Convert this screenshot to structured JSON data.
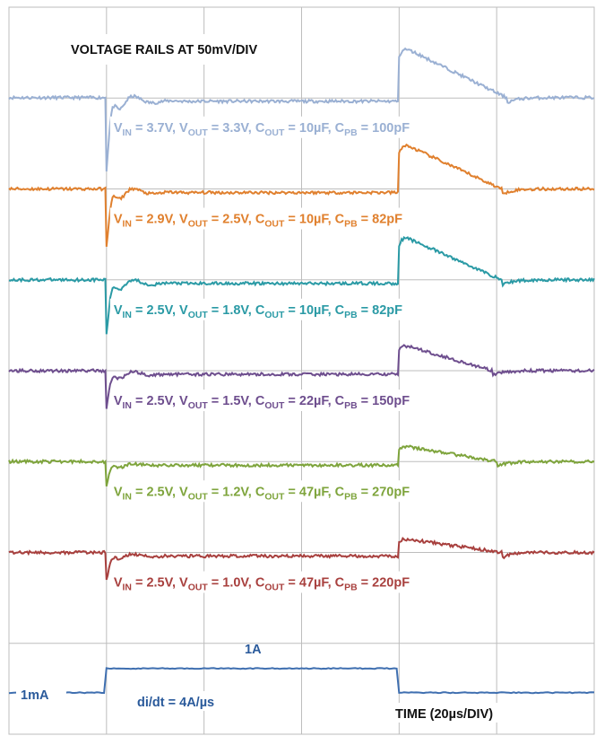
{
  "chart_data": {
    "type": "line",
    "title": "VOLTAGE RAILS AT 50mV/DIV",
    "time_label": "TIME (20µs/DIV)",
    "grid": true,
    "divisions": {
      "x": 6,
      "y": 8
    },
    "xlim": [
      0,
      120
    ],
    "x_unit": "µs",
    "load_step": {
      "t_on": 20,
      "t_off": 80,
      "low_label": "1mA",
      "high_label": "1A",
      "slew_label": "di/dt = 4A/µs",
      "color": "#3f6fb0"
    },
    "series": [
      {
        "color": "#9ab0d3",
        "undershoot_mV": -38,
        "overshoot_mV": 29,
        "recovery_us": 22,
        "label": {
          "vin": "3.7V",
          "vout": "3.3V",
          "cout": "10µF",
          "cpb": "100pF"
        }
      },
      {
        "color": "#e0802e",
        "undershoot_mV": -30,
        "overshoot_mV": 26,
        "recovery_us": 21,
        "label": {
          "vin": "2.9V",
          "vout": "2.5V",
          "cout": "10µF",
          "cpb": "82pF"
        }
      },
      {
        "color": "#2a9aa5",
        "undershoot_mV": -28,
        "overshoot_mV": 25,
        "recovery_us": 21,
        "label": {
          "vin": "2.5V",
          "vout": "1.8V",
          "cout": "10µF",
          "cpb": "82pF"
        }
      },
      {
        "color": "#6e4e8e",
        "undershoot_mV": -19,
        "overshoot_mV": 15,
        "recovery_us": 19,
        "label": {
          "vin": "2.5V",
          "vout": "1.5V",
          "cout": "22µF",
          "cpb": "150pF"
        }
      },
      {
        "color": "#7ea43c",
        "undershoot_mV": -11,
        "overshoot_mV": 9,
        "recovery_us": 20,
        "label": {
          "vin": "2.5V",
          "vout": "1.2V",
          "cout": "47µF",
          "cpb": "270pF"
        }
      },
      {
        "color": "#a8403e",
        "undershoot_mV": -13,
        "overshoot_mV": 8,
        "recovery_us": 21,
        "label": {
          "vin": "2.5V",
          "vout": "1.0V",
          "cout": "47µF",
          "cpb": "220pF"
        }
      }
    ]
  }
}
